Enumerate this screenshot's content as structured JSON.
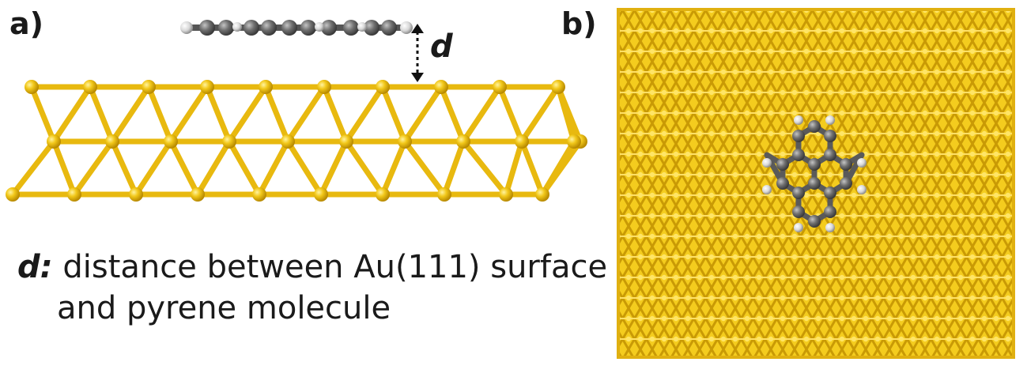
{
  "panels": {
    "a_label": "a)",
    "b_label": "b)"
  },
  "distance_marker": "d",
  "caption": {
    "symbol": "d:",
    "line1": "distance between Au(111) surface",
    "line2": "and pyrene molecule"
  },
  "colors": {
    "gold": "#f2c81a",
    "gold_dark": "#c99a05",
    "carbon": "#6e6e6e",
    "hydrogen": "#dcdcdc"
  }
}
